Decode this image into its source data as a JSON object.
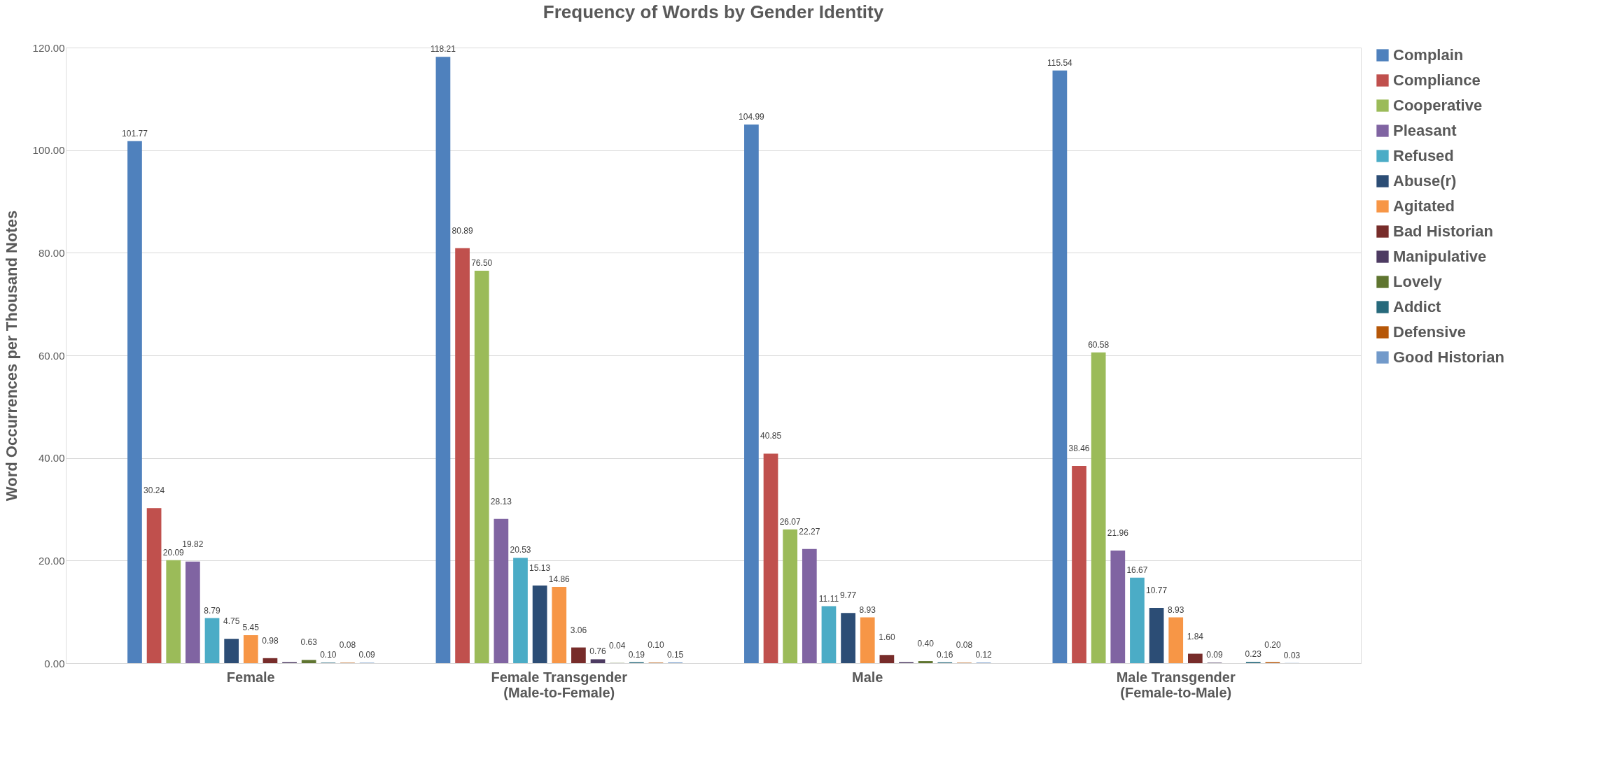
{
  "chart_data": {
    "type": "bar",
    "title": "Frequency of Words by Gender Identity",
    "ylabel": "Word Occurrences per Thousand Notes",
    "categories": [
      "Female",
      "Female Transgender\n(Male-to-Female)",
      "Male",
      "Male Transgender\n(Female-to-Male)"
    ],
    "ylim": [
      0,
      120
    ],
    "yticks": [
      {
        "value": 0,
        "label": "0.00"
      },
      {
        "value": 20,
        "label": "20.00"
      },
      {
        "value": 40,
        "label": "40.00"
      },
      {
        "value": 60,
        "label": "60.00"
      },
      {
        "value": 80,
        "label": "80.00"
      },
      {
        "value": 100,
        "label": "100.00"
      },
      {
        "value": 120,
        "label": "120.00"
      }
    ],
    "grid": "y",
    "legend": "right",
    "series": [
      {
        "name": "Complain",
        "color": "#4f81bd",
        "values": [
          101.77,
          118.21,
          104.99,
          115.54
        ],
        "value_labels": [
          "101.77",
          "118.21",
          "104.99",
          "115.54"
        ]
      },
      {
        "name": "Compliance",
        "color": "#c0504d",
        "values": [
          30.24,
          80.89,
          40.85,
          38.46
        ],
        "value_labels": [
          "30.24",
          "80.89",
          "40.85",
          "38.46"
        ]
      },
      {
        "name": "Cooperative",
        "color": "#9bbb59",
        "values": [
          20.09,
          76.5,
          26.07,
          60.58
        ],
        "value_labels": [
          "20.09",
          "76.50",
          "26.07",
          "60.58"
        ]
      },
      {
        "name": "Pleasant",
        "color": "#8064a2",
        "values": [
          19.82,
          28.13,
          22.27,
          21.96
        ],
        "value_labels": [
          "19.82",
          "28.13",
          "22.27",
          "21.96"
        ]
      },
      {
        "name": "Refused",
        "color": "#4bacc6",
        "values": [
          8.79,
          20.53,
          11.11,
          16.67
        ],
        "value_labels": [
          "8.79",
          "20.53",
          "11.11",
          "16.67"
        ]
      },
      {
        "name": "Abuse(r)",
        "color": "#2c4d75",
        "values": [
          4.75,
          15.13,
          9.77,
          10.77
        ],
        "value_labels": [
          "4.75",
          "15.13",
          "9.77",
          "10.77"
        ]
      },
      {
        "name": "Agitated",
        "color": "#f79646",
        "values": [
          5.45,
          14.86,
          8.93,
          8.93
        ],
        "value_labels": [
          "5.45",
          "14.86",
          "8.93",
          "8.93"
        ]
      },
      {
        "name": "Bad Historian",
        "color": "#772c2a",
        "values": [
          0.98,
          3.06,
          1.6,
          1.84
        ],
        "value_labels": [
          "0.98",
          "3.06",
          "1.60",
          "1.84"
        ]
      },
      {
        "name": "Manipulative",
        "color": "#4d3b62",
        "values": [
          0.2,
          0.76,
          0.2,
          0.09
        ],
        "value_labels": [
          null,
          "0.76",
          null,
          "0.09"
        ]
      },
      {
        "name": "Lovely",
        "color": "#5f7530",
        "values": [
          0.63,
          0.04,
          0.4,
          null
        ],
        "value_labels": [
          "0.63",
          "0.04",
          "0.40",
          null
        ]
      },
      {
        "name": "Addict",
        "color": "#276a7c",
        "values": [
          0.1,
          0.19,
          0.16,
          0.23
        ],
        "value_labels": [
          "0.10",
          "0.19",
          "0.16",
          "0.23"
        ]
      },
      {
        "name": "Defensive",
        "color": "#b65708",
        "values": [
          0.08,
          0.1,
          0.08,
          0.2
        ],
        "value_labels": [
          "0.08",
          "0.10",
          "0.08",
          "0.20"
        ]
      },
      {
        "name": "Good Historian",
        "color": "#729aca",
        "values": [
          0.09,
          0.15,
          0.12,
          0.03
        ],
        "value_labels": [
          "0.09",
          "0.15",
          "0.12",
          "0.03"
        ]
      }
    ]
  }
}
